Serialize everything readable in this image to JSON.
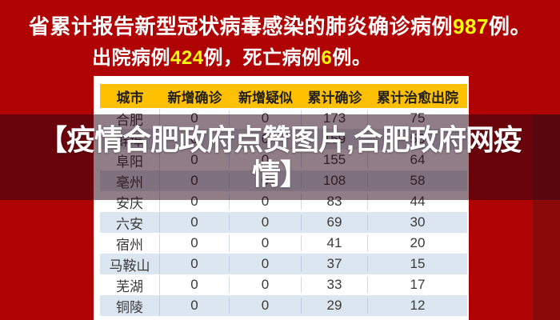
{
  "banner": {
    "line1": {
      "prefix": "省累计报告新型冠状病毒感染的肺炎确诊病例",
      "highlight": "987",
      "suffix": "例。"
    },
    "line2": {
      "prefix": "出院病例",
      "highlight1": "424",
      "middle": "例，死亡病例",
      "highlight2": "6",
      "suffix": "例。"
    }
  },
  "watermark": {
    "line1": "【疫情合肥政府点赞图片,合肥政府网疫",
    "line2": "情】"
  },
  "chart_data": {
    "type": "table",
    "title": "省累计报告新型冠状病毒感染的肺炎确诊病例987例。出院病例424例，死亡病例6例。",
    "province_totals": {
      "cumulative_confirmed": 987,
      "discharged": 424,
      "deaths": 6
    },
    "columns": [
      "城市",
      "新增确诊",
      "新增疑似",
      "累计确诊",
      "累计治愈出院"
    ],
    "rows": [
      [
        "合肥",
        "0",
        "0",
        "173",
        "75"
      ],
      [
        "蚌埠",
        "0",
        "0",
        "159",
        "53"
      ],
      [
        "阜阳",
        "0",
        "0",
        "155",
        "64"
      ],
      [
        "亳州",
        "0",
        "0",
        "108",
        "58"
      ],
      [
        "安庆",
        "0",
        "0",
        "83",
        "44"
      ],
      [
        "六安",
        "0",
        "0",
        "69",
        "30"
      ],
      [
        "宿州",
        "0",
        "0",
        "41",
        "20"
      ],
      [
        "马鞍山",
        "0",
        "0",
        "37",
        "15"
      ],
      [
        "芜湖",
        "0",
        "0",
        "33",
        "17"
      ],
      [
        "铜陵",
        "0",
        "0",
        "29",
        "12"
      ]
    ]
  },
  "colors": {
    "bg_red": "#B00303",
    "highlight_yellow": "#FFFF00",
    "header_yellow": "#FFC000",
    "row_alt_blue": "#DCE6F1",
    "right_strip": "#8B0909",
    "band_overlay": "rgba(42,6,22,0.52)"
  }
}
